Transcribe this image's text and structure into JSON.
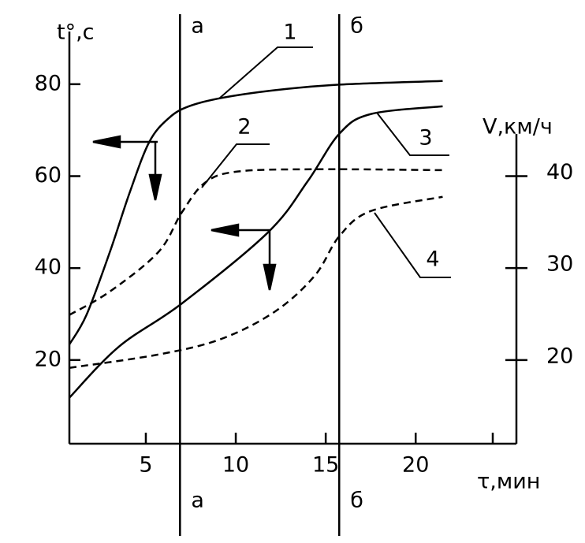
{
  "chart_data": {
    "type": "line",
    "y_label": "t°,c",
    "y2_label": "V,км/ч",
    "x_label": "τ,мин",
    "xlim": [
      0.75,
      25.6
    ],
    "ylim": [
      1.8,
      90.6
    ],
    "y2lim": [
      10.9,
      55.3
    ],
    "xticks": [
      5,
      10,
      15,
      20
    ],
    "yticks": [
      20,
      40,
      60,
      80
    ],
    "y2ticks": [
      20,
      30,
      40
    ],
    "annotations": [
      {
        "label": "а",
        "x": 6.9
      },
      {
        "label": "б",
        "x": 15.75
      }
    ],
    "series": [
      {
        "name": "1",
        "color": "#000000",
        "style": "solid",
        "x": [
          0.75,
          1.7,
          3.0,
          4.1,
          5.2,
          6.3,
          7.4,
          9.2,
          12.2,
          15.75,
          21.5
        ],
        "values": [
          23.4,
          29.8,
          43.5,
          56.4,
          67.5,
          72.7,
          75.2,
          77,
          78.7,
          79.9,
          80.7
        ]
      },
      {
        "name": "2",
        "color": "#000000",
        "style": "dashed",
        "x": [
          0.75,
          3.0,
          5.7,
          7.0,
          8.3,
          10.1,
          14.4,
          21.5
        ],
        "values": [
          29.8,
          34.9,
          43.5,
          52.1,
          58.6,
          61,
          61.5,
          61.3
        ]
      },
      {
        "name": "3",
        "color": "#000000",
        "style": "solid",
        "x": [
          0.75,
          3.5,
          7.0,
          11.8,
          14.0,
          15.75,
          17.5,
          21.5
        ],
        "values": [
          11.8,
          22.9,
          32.3,
          47.8,
          58.9,
          69.2,
          73.5,
          75.2
        ]
      },
      {
        "name": "4",
        "color": "#000000",
        "style": "dashed",
        "x": [
          0.75,
          5.7,
          9.2,
          12.2,
          14.4,
          15.75,
          17.5,
          21.5
        ],
        "values": [
          18.3,
          21.2,
          24.6,
          30.6,
          38.4,
          46.9,
          52.4,
          55.5
        ]
      }
    ]
  }
}
